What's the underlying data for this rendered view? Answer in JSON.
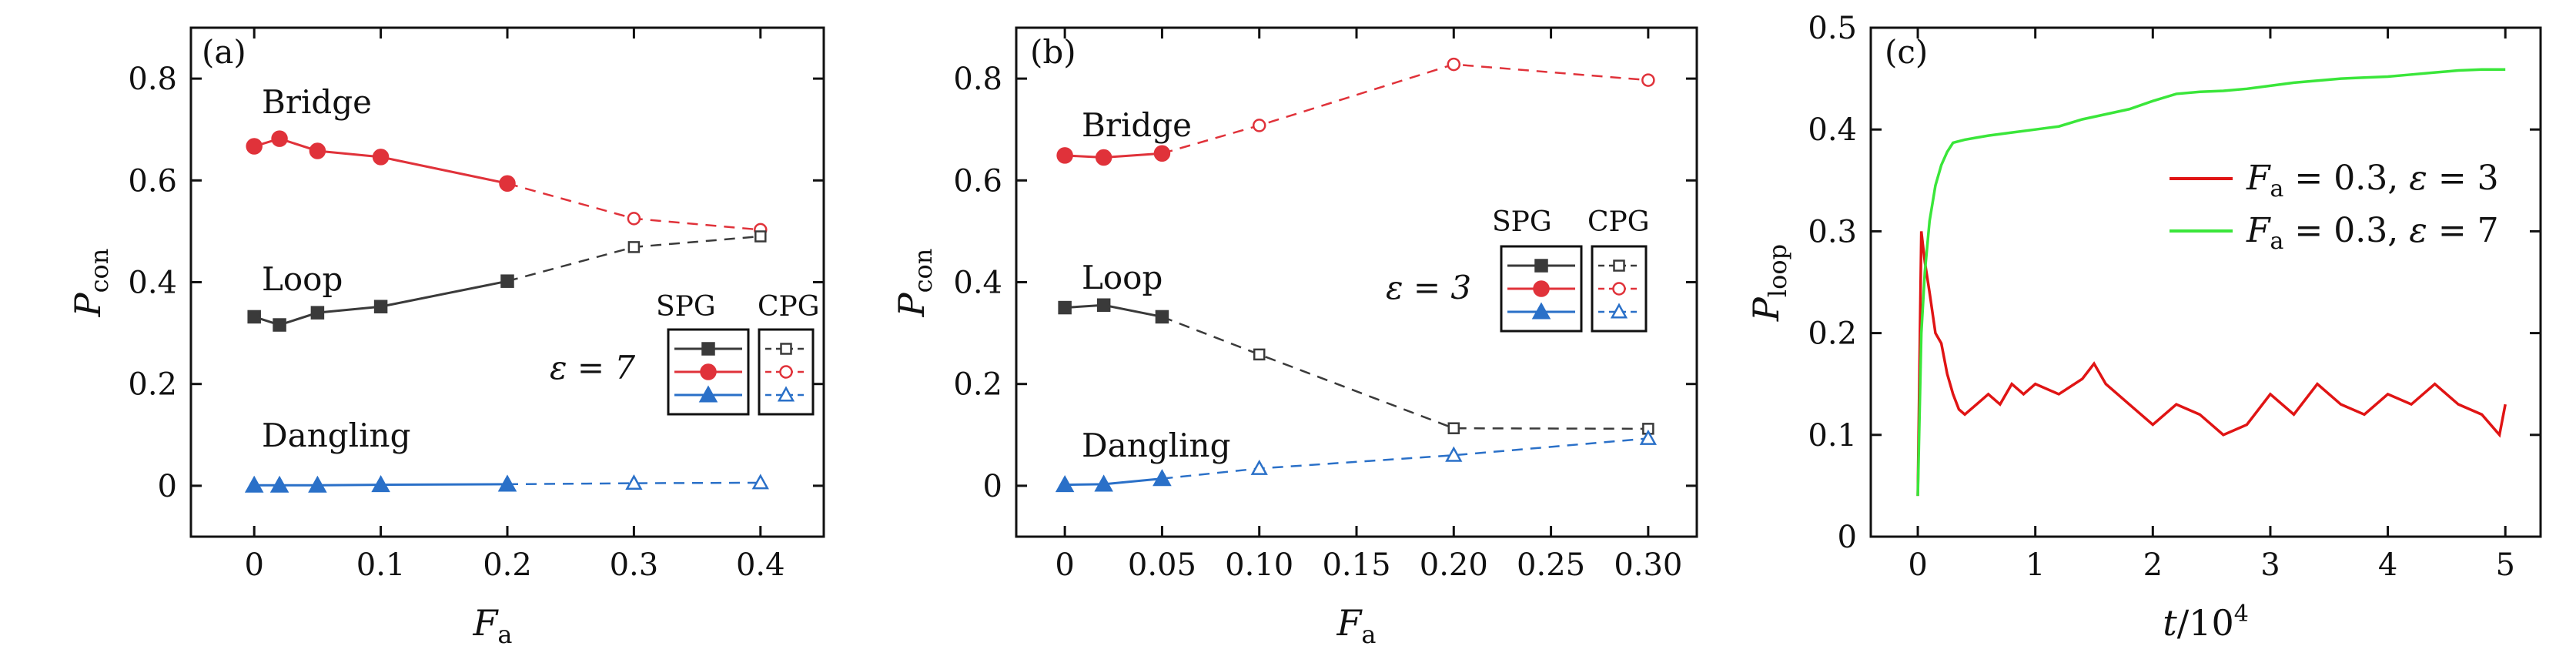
{
  "colors": {
    "loop": "#3a3a3a",
    "bridge": "#e0323a",
    "dangling": "#2a70c8",
    "curve_eps3": "#e01414",
    "curve_eps7": "#3ae63a",
    "axis": "#111111"
  },
  "chart_data": [
    {
      "type": "line",
      "panel_label": "(a)",
      "xlabel": "F_a",
      "ylabel": "P_con",
      "xlim": [
        -0.05,
        0.45
      ],
      "ylim": [
        -0.1,
        0.9
      ],
      "x_ticks": [
        0,
        0.1,
        0.2,
        0.3,
        0.4
      ],
      "x_tick_labels": [
        "0",
        "0.1",
        "0.2",
        "0.3",
        "0.4"
      ],
      "y_ticks": [
        0,
        0.2,
        0.4,
        0.6,
        0.8
      ],
      "y_tick_labels": [
        "0",
        "0.2",
        "0.4",
        "0.6",
        "0.8"
      ],
      "series": [
        {
          "name": "Bridge",
          "color_key": "bridge",
          "marker": "circle",
          "spg": {
            "x": [
              0,
              0.02,
              0.05,
              0.1,
              0.2
            ],
            "y": [
              0.667,
              0.682,
              0.658,
              0.646,
              0.594
            ]
          },
          "cpg": {
            "x": [
              0.2,
              0.3,
              0.4
            ],
            "y": [
              0.594,
              0.525,
              0.503
            ]
          }
        },
        {
          "name": "Loop",
          "color_key": "loop",
          "marker": "square",
          "spg": {
            "x": [
              0,
              0.02,
              0.05,
              0.1,
              0.2
            ],
            "y": [
              0.332,
              0.316,
              0.34,
              0.352,
              0.402
            ]
          },
          "cpg": {
            "x": [
              0.2,
              0.3,
              0.4
            ],
            "y": [
              0.402,
              0.469,
              0.49
            ]
          }
        },
        {
          "name": "Dangling",
          "color_key": "dangling",
          "marker": "triangle",
          "spg": {
            "x": [
              0,
              0.02,
              0.05,
              0.1,
              0.2
            ],
            "y": [
              0.001,
              0.001,
              0.001,
              0.002,
              0.003
            ]
          },
          "cpg": {
            "x": [
              0.2,
              0.3,
              0.4
            ],
            "y": [
              0.003,
              0.005,
              0.006
            ]
          }
        }
      ],
      "annotations": {
        "bridge": "Bridge",
        "loop": "Loop",
        "dangling": "Dangling",
        "epsilon": "ε = 7"
      },
      "legend": {
        "headers": [
          "SPG",
          "CPG"
        ],
        "placement": "right"
      }
    },
    {
      "type": "line",
      "panel_label": "(b)",
      "xlabel": "F_a",
      "ylabel": "P_con",
      "x_ticks": [
        "0",
        "0.05",
        "0.10",
        "0.15",
        "0.20",
        "0.25",
        "0.30"
      ],
      "x_tick_values": [
        0,
        0.05,
        0.1,
        0.15,
        0.2,
        0.25,
        0.3
      ],
      "xlim": [
        -0.025,
        0.325
      ],
      "ylim": [
        -0.1,
        0.9
      ],
      "y_ticks": [
        0,
        0.2,
        0.4,
        0.6,
        0.8
      ],
      "y_tick_labels": [
        "0",
        "0.2",
        "0.4",
        "0.6",
        "0.8"
      ],
      "series": [
        {
          "name": "Bridge",
          "color_key": "bridge",
          "marker": "circle",
          "spg": {
            "x": [
              0,
              0.02,
              0.05
            ],
            "y": [
              0.649,
              0.645,
              0.653
            ]
          },
          "cpg": {
            "x": [
              0.05,
              0.1,
              0.2,
              0.3
            ],
            "y": [
              0.653,
              0.708,
              0.828,
              0.797
            ]
          }
        },
        {
          "name": "Loop",
          "color_key": "loop",
          "marker": "square",
          "spg": {
            "x": [
              0,
              0.02,
              0.05
            ],
            "y": [
              0.35,
              0.355,
              0.332
            ]
          },
          "cpg": {
            "x": [
              0.05,
              0.1,
              0.2,
              0.3
            ],
            "y": [
              0.332,
              0.258,
              0.113,
              0.112
            ]
          }
        },
        {
          "name": "Dangling",
          "color_key": "dangling",
          "marker": "triangle",
          "spg": {
            "x": [
              0,
              0.02,
              0.05
            ],
            "y": [
              0.002,
              0.003,
              0.014
            ]
          },
          "cpg": {
            "x": [
              0.05,
              0.1,
              0.2,
              0.3
            ],
            "y": [
              0.014,
              0.034,
              0.06,
              0.093
            ]
          }
        }
      ],
      "annotations": {
        "bridge": "Bridge",
        "loop": "Loop",
        "dangling": "Dangling",
        "epsilon": "ε = 3"
      },
      "legend": {
        "headers": [
          "SPG",
          "CPG"
        ],
        "placement": "right"
      }
    },
    {
      "type": "line",
      "panel_label": "(c)",
      "xlabel": "t/10^4",
      "ylabel": "P_loop",
      "xlim": [
        -0.4,
        5.3
      ],
      "ylim": [
        0,
        0.5
      ],
      "x_ticks": [
        0,
        1,
        2,
        3,
        4,
        5
      ],
      "x_tick_labels": [
        "0",
        "1",
        "2",
        "3",
        "4",
        "5"
      ],
      "y_ticks": [
        0,
        0.1,
        0.2,
        0.3,
        0.4,
        0.5
      ],
      "y_tick_labels": [
        "0",
        "0.1",
        "0.2",
        "0.3",
        "0.4",
        "0.5"
      ],
      "series": [
        {
          "name": "F_a = 0.3, ε = 3",
          "color_key": "curve_eps3",
          "x": [
            0,
            0.03,
            0.06,
            0.1,
            0.15,
            0.2,
            0.25,
            0.3,
            0.35,
            0.4,
            0.5,
            0.6,
            0.7,
            0.8,
            0.9,
            1.0,
            1.2,
            1.4,
            1.5,
            1.6,
            1.8,
            2.0,
            2.2,
            2.4,
            2.6,
            2.8,
            3.0,
            3.2,
            3.4,
            3.6,
            3.8,
            4.0,
            4.2,
            4.4,
            4.6,
            4.8,
            4.95,
            5.0
          ],
          "y": [
            0.04,
            0.3,
            0.27,
            0.24,
            0.2,
            0.19,
            0.16,
            0.14,
            0.125,
            0.12,
            0.13,
            0.14,
            0.13,
            0.15,
            0.14,
            0.15,
            0.14,
            0.155,
            0.17,
            0.15,
            0.13,
            0.11,
            0.13,
            0.12,
            0.1,
            0.11,
            0.14,
            0.12,
            0.15,
            0.13,
            0.12,
            0.14,
            0.13,
            0.15,
            0.13,
            0.12,
            0.1,
            0.13
          ]
        },
        {
          "name": "F_a = 0.3, ε = 7",
          "color_key": "curve_eps7",
          "x": [
            0,
            0.03,
            0.06,
            0.1,
            0.15,
            0.2,
            0.25,
            0.3,
            0.4,
            0.5,
            0.6,
            0.8,
            1.0,
            1.2,
            1.4,
            1.6,
            1.8,
            2.0,
            2.2,
            2.4,
            2.6,
            2.8,
            3.0,
            3.2,
            3.4,
            3.6,
            3.8,
            4.0,
            4.2,
            4.4,
            4.6,
            4.8,
            5.0
          ],
          "y": [
            0.04,
            0.2,
            0.26,
            0.31,
            0.345,
            0.365,
            0.378,
            0.387,
            0.39,
            0.392,
            0.394,
            0.397,
            0.4,
            0.403,
            0.41,
            0.415,
            0.42,
            0.428,
            0.435,
            0.437,
            0.438,
            0.44,
            0.443,
            0.446,
            0.448,
            0.45,
            0.451,
            0.452,
            0.454,
            0.456,
            0.458,
            0.459,
            0.459
          ]
        }
      ],
      "legend": {
        "placement": "right",
        "entries": [
          {
            "label": "F_a = 0.3, ε = 3",
            "color_key": "curve_eps3"
          },
          {
            "label": "F_a = 0.3, ε = 7",
            "color_key": "curve_eps7"
          }
        ]
      }
    }
  ]
}
